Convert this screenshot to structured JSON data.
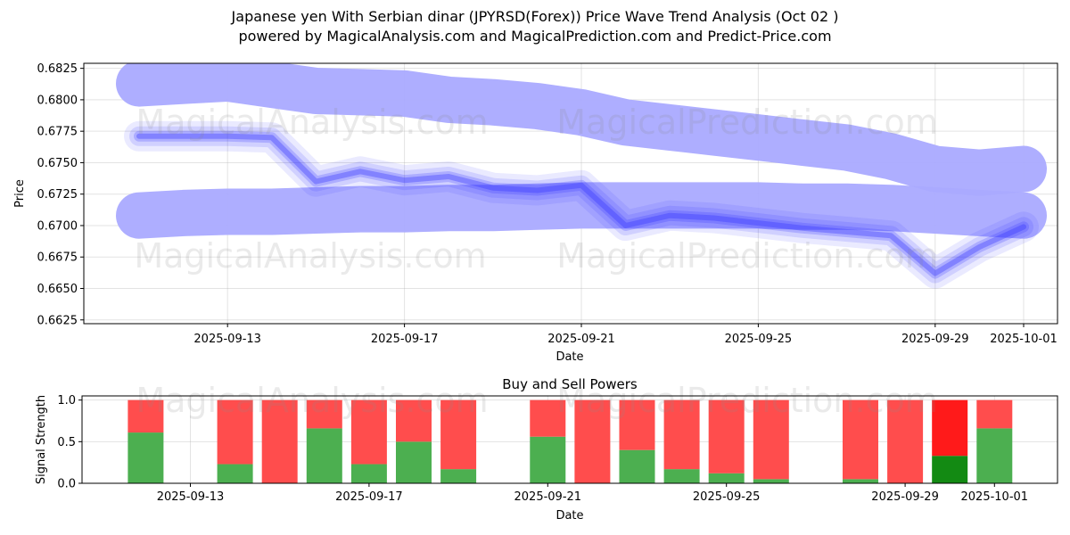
{
  "title_line1": "Japanese yen With Serbian dinar (JPYRSD(Forex)) Price Wave Trend Analysis (Oct 02 )",
  "title_line2": "powered by MagicalAnalysis.com and MagicalPrediction.com and Predict-Price.com",
  "watermarks": [
    "MagicalAnalysis.com",
    "MagicalPrediction.com"
  ],
  "colors": {
    "band": "#aaaaff",
    "wave": "#3333ff",
    "buy": "#4caf50",
    "sell": "#ff4d4d",
    "buy_strong": "#138a13",
    "sell_strong": "#ff1a1a"
  },
  "chart_data": [
    {
      "type": "line",
      "title": "",
      "xlabel": "Date",
      "ylabel": "Price",
      "ylim": [
        0.6622,
        0.6829
      ],
      "xticks": [
        "2025-09-13",
        "2025-09-17",
        "2025-09-21",
        "2025-09-25",
        "2025-09-29",
        "2025-10-01"
      ],
      "yticks": [
        "0.6625",
        "0.6650",
        "0.6675",
        "0.6700",
        "0.6725",
        "0.6750",
        "0.6775",
        "0.6800",
        "0.6825"
      ],
      "dates": [
        "2025-09-11",
        "2025-09-12",
        "2025-09-13",
        "2025-09-14",
        "2025-09-15",
        "2025-09-16",
        "2025-09-17",
        "2025-09-18",
        "2025-09-19",
        "2025-09-20",
        "2025-09-21",
        "2025-09-22",
        "2025-09-23",
        "2025-09-24",
        "2025-09-25",
        "2025-09-26",
        "2025-09-27",
        "2025-09-28",
        "2025-09-29",
        "2025-09-30",
        "2025-10-01"
      ],
      "series": [
        {
          "name": "wave",
          "values": [
            0.6771,
            0.6771,
            0.6771,
            0.677,
            0.6735,
            0.6743,
            0.6736,
            0.6739,
            0.673,
            0.6728,
            0.6732,
            0.67,
            0.6708,
            0.6706,
            0.6702,
            0.6698,
            0.6695,
            0.6692,
            0.6662,
            0.6683,
            0.6699
          ]
        },
        {
          "name": "upper-band",
          "values": [
            0.6813,
            0.6815,
            0.6817,
            0.6812,
            0.6807,
            0.6806,
            0.6805,
            0.68,
            0.6798,
            0.6795,
            0.679,
            0.6782,
            0.6778,
            0.6774,
            0.677,
            0.6766,
            0.6762,
            0.6755,
            0.6745,
            0.6742,
            0.6745
          ]
        },
        {
          "name": "lower-band",
          "values": [
            0.6708,
            0.671,
            0.6711,
            0.6711,
            0.6712,
            0.6713,
            0.6713,
            0.6714,
            0.6714,
            0.6715,
            0.6716,
            0.6716,
            0.6716,
            0.6716,
            0.6716,
            0.6715,
            0.6715,
            0.6714,
            0.6712,
            0.671,
            0.6708
          ]
        }
      ]
    },
    {
      "type": "bar",
      "title": "Buy and Sell Powers",
      "xlabel": "Date",
      "ylabel": "Signal Strength",
      "ylim": [
        0,
        1.05
      ],
      "xticks": [
        "2025-09-13",
        "2025-09-17",
        "2025-09-21",
        "2025-09-25",
        "2025-09-29",
        "2025-10-01"
      ],
      "yticks": [
        "0.0",
        "0.5",
        "1.0"
      ],
      "categories": [
        "2025-09-12",
        "2025-09-14",
        "2025-09-15",
        "2025-09-16",
        "2025-09-17",
        "2025-09-18",
        "2025-09-19",
        "2025-09-21",
        "2025-09-22",
        "2025-09-23",
        "2025-09-24",
        "2025-09-25",
        "2025-09-26",
        "2025-09-28",
        "2025-09-29",
        "2025-09-30",
        "2025-10-01"
      ],
      "series": [
        {
          "name": "Buy",
          "values": [
            0.61,
            0.23,
            0.0,
            0.66,
            0.23,
            0.5,
            0.17,
            0.56,
            0.0,
            0.4,
            0.17,
            0.12,
            0.05,
            0.05,
            0.0,
            0.33,
            0.66
          ]
        },
        {
          "name": "Sell",
          "values": [
            0.39,
            0.77,
            1.0,
            0.34,
            0.77,
            0.5,
            0.83,
            0.44,
            1.0,
            0.6,
            0.83,
            0.88,
            0.95,
            0.95,
            1.0,
            0.67,
            0.34
          ]
        }
      ]
    }
  ]
}
